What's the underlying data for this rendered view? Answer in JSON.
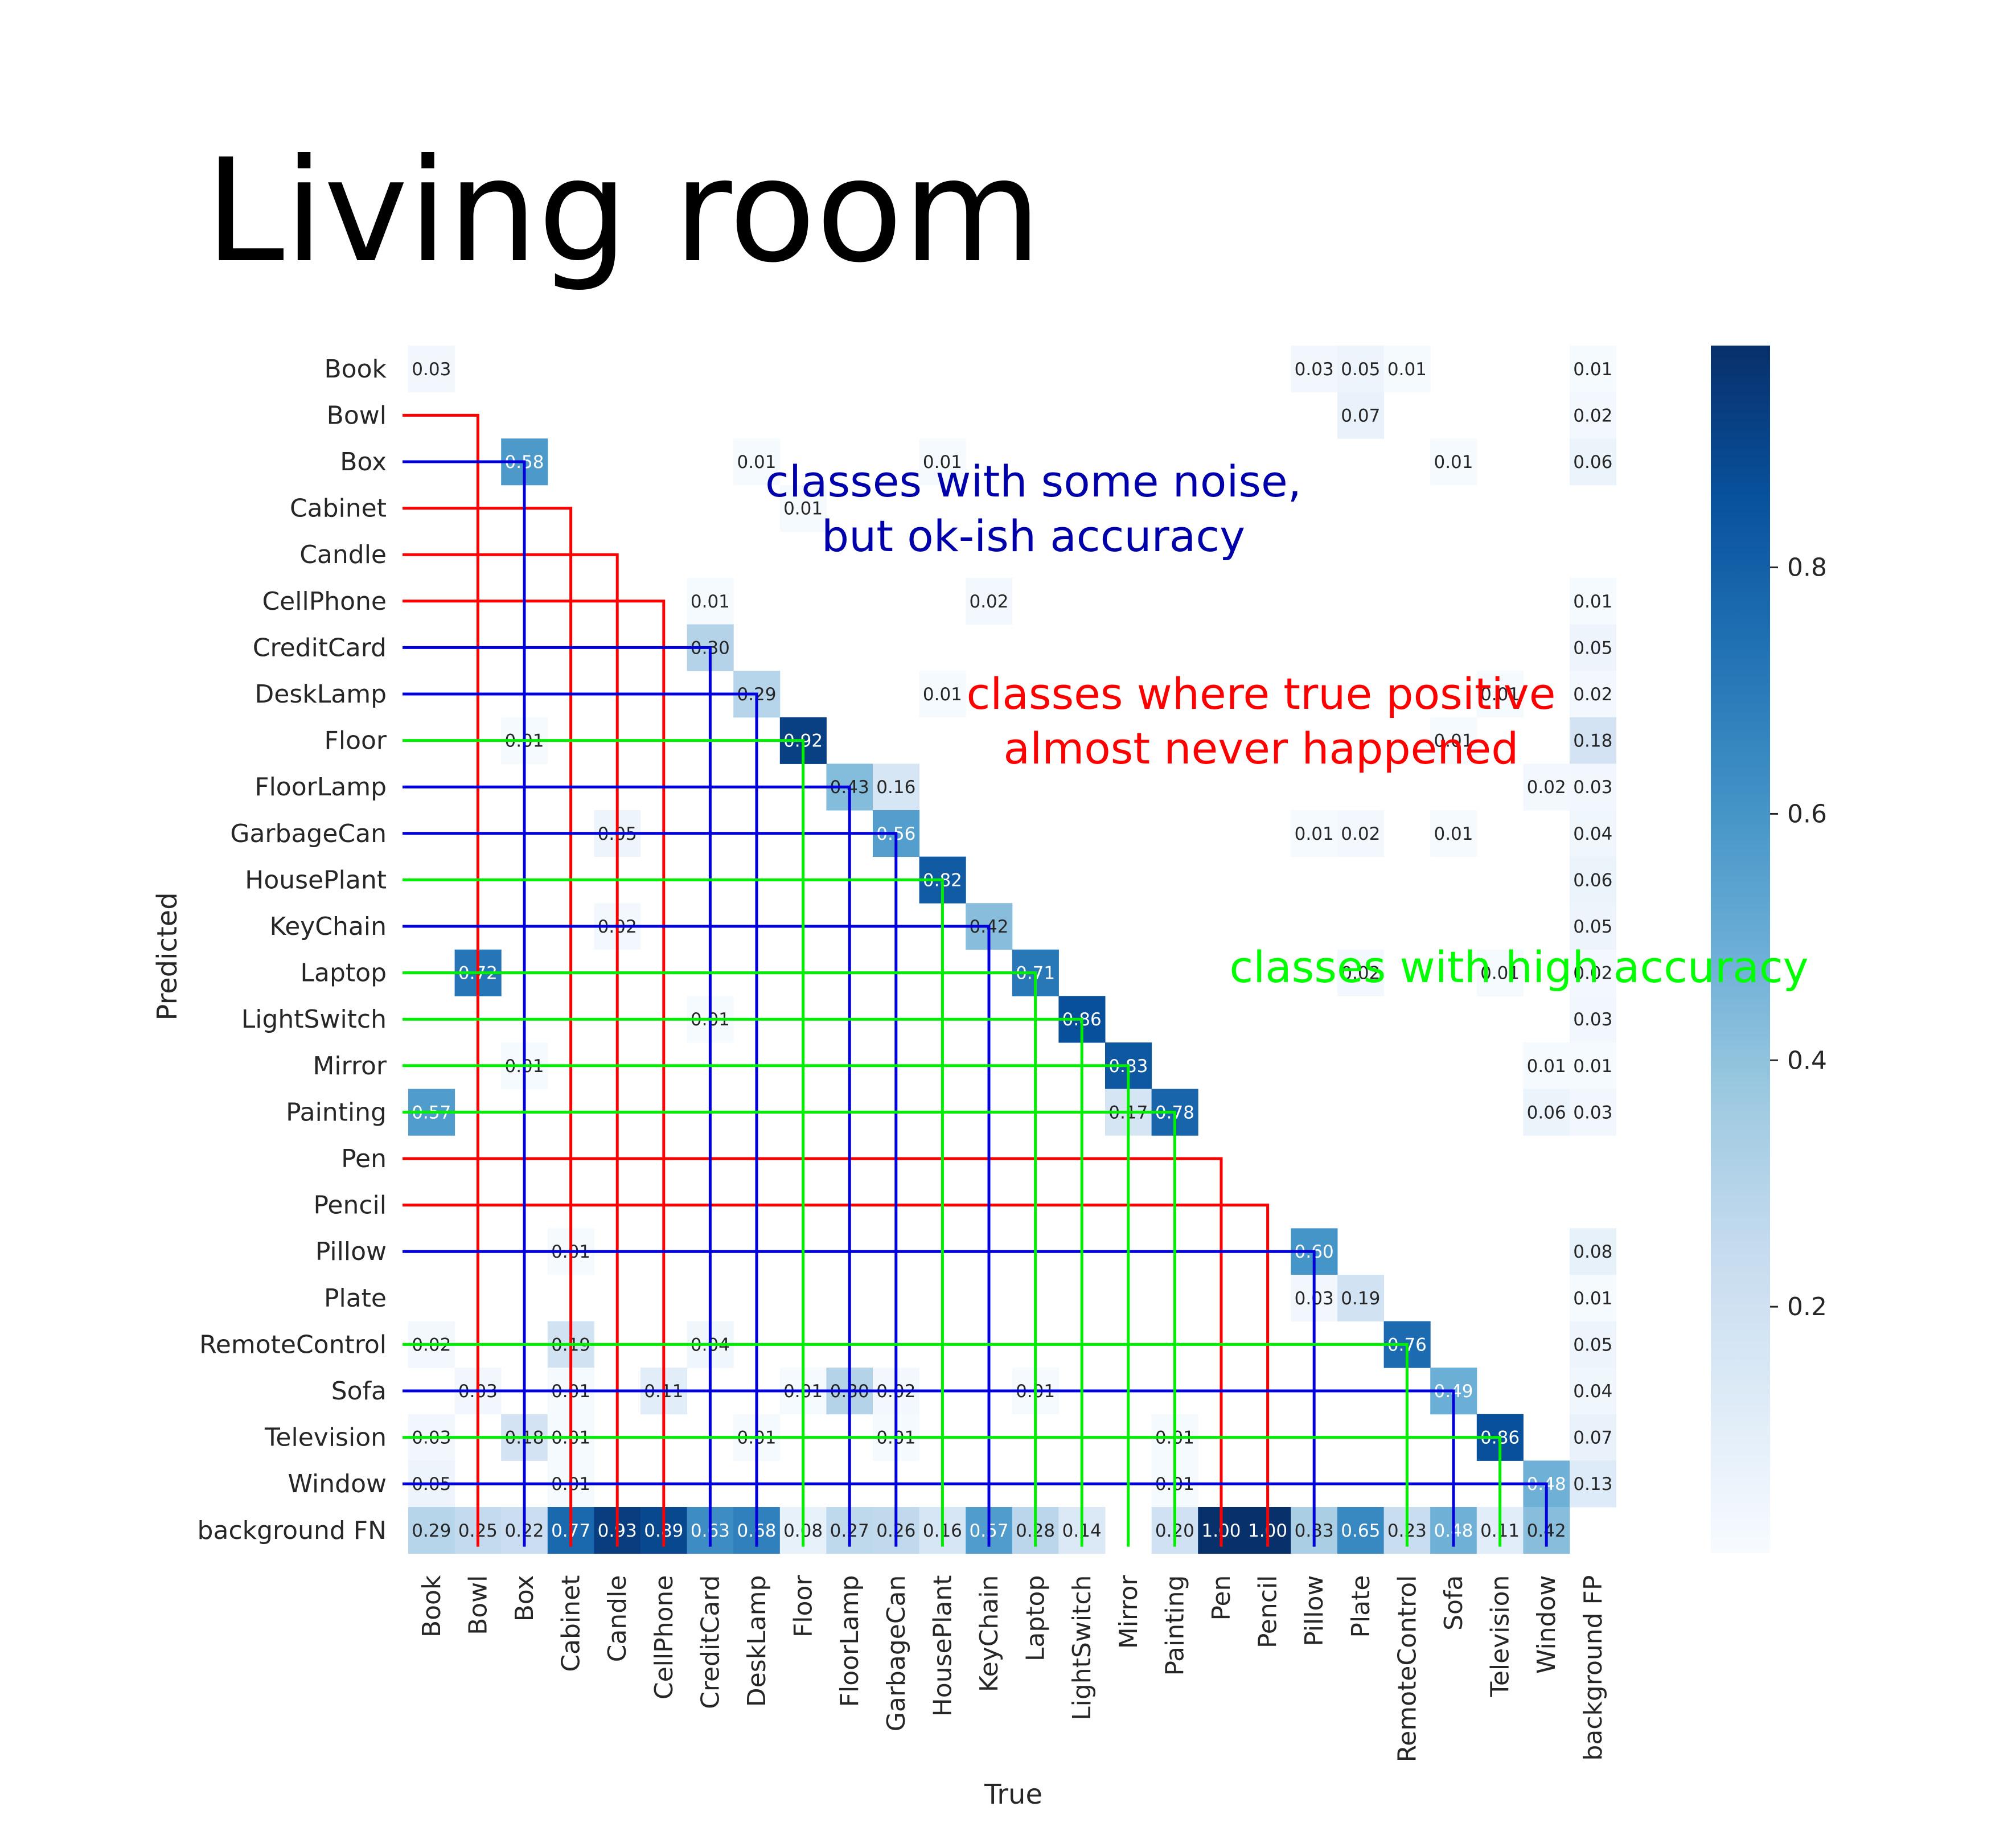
{
  "page_title": "Living room",
  "chart_data": {
    "type": "heatmap",
    "xlabel": "True",
    "ylabel": "Predicted",
    "x_categories": [
      "Book",
      "Bowl",
      "Box",
      "Cabinet",
      "Candle",
      "CellPhone",
      "CreditCard",
      "DeskLamp",
      "Floor",
      "FloorLamp",
      "GarbageCan",
      "HousePlant",
      "KeyChain",
      "Laptop",
      "LightSwitch",
      "Mirror",
      "Painting",
      "Pen",
      "Pencil",
      "Pillow",
      "Plate",
      "RemoteControl",
      "Sofa",
      "Television",
      "Window",
      "background FP"
    ],
    "y_categories": [
      "Book",
      "Bowl",
      "Box",
      "Cabinet",
      "Candle",
      "CellPhone",
      "CreditCard",
      "DeskLamp",
      "Floor",
      "FloorLamp",
      "GarbageCan",
      "HousePlant",
      "KeyChain",
      "Laptop",
      "LightSwitch",
      "Mirror",
      "Painting",
      "Pen",
      "Pencil",
      "Pillow",
      "Plate",
      "RemoteControl",
      "Sofa",
      "Television",
      "Window",
      "background FN"
    ],
    "colormap": "Blues",
    "value_range": [
      0,
      0.98
    ],
    "colorbar_ticks": [
      0.2,
      0.4,
      0.6,
      0.8
    ],
    "colorbar_tick_labels": [
      "0.2",
      "0.4",
      "0.6",
      "0.8"
    ],
    "cells": [
      {
        "row": "Book",
        "col": "Book",
        "value": 0.03
      },
      {
        "row": "Book",
        "col": "Pillow",
        "value": 0.03
      },
      {
        "row": "Book",
        "col": "Plate",
        "value": 0.05
      },
      {
        "row": "Book",
        "col": "RemoteControl",
        "value": 0.01
      },
      {
        "row": "Book",
        "col": "background FP",
        "value": 0.01
      },
      {
        "row": "Bowl",
        "col": "Plate",
        "value": 0.07
      },
      {
        "row": "Bowl",
        "col": "background FP",
        "value": 0.02
      },
      {
        "row": "Box",
        "col": "Box",
        "value": 0.58
      },
      {
        "row": "Box",
        "col": "DeskLamp",
        "value": 0.01
      },
      {
        "row": "Box",
        "col": "HousePlant",
        "value": 0.01
      },
      {
        "row": "Box",
        "col": "Sofa",
        "value": 0.01
      },
      {
        "row": "Box",
        "col": "background FP",
        "value": 0.06
      },
      {
        "row": "Cabinet",
        "col": "Floor",
        "value": 0.01
      },
      {
        "row": "CellPhone",
        "col": "CreditCard",
        "value": 0.01
      },
      {
        "row": "CellPhone",
        "col": "KeyChain",
        "value": 0.02
      },
      {
        "row": "CellPhone",
        "col": "background FP",
        "value": 0.01
      },
      {
        "row": "CreditCard",
        "col": "CreditCard",
        "value": 0.3
      },
      {
        "row": "CreditCard",
        "col": "background FP",
        "value": 0.05
      },
      {
        "row": "DeskLamp",
        "col": "DeskLamp",
        "value": 0.29
      },
      {
        "row": "DeskLamp",
        "col": "HousePlant",
        "value": 0.01
      },
      {
        "row": "DeskLamp",
        "col": "Television",
        "value": 0.01
      },
      {
        "row": "DeskLamp",
        "col": "background FP",
        "value": 0.02
      },
      {
        "row": "Floor",
        "col": "Box",
        "value": 0.01
      },
      {
        "row": "Floor",
        "col": "Floor",
        "value": 0.92
      },
      {
        "row": "Floor",
        "col": "Sofa",
        "value": 0.01
      },
      {
        "row": "Floor",
        "col": "background FP",
        "value": 0.18
      },
      {
        "row": "FloorLamp",
        "col": "FloorLamp",
        "value": 0.43
      },
      {
        "row": "FloorLamp",
        "col": "GarbageCan",
        "value": 0.16
      },
      {
        "row": "FloorLamp",
        "col": "Window",
        "value": 0.02
      },
      {
        "row": "FloorLamp",
        "col": "background FP",
        "value": 0.03
      },
      {
        "row": "GarbageCan",
        "col": "Candle",
        "value": 0.05
      },
      {
        "row": "GarbageCan",
        "col": "GarbageCan",
        "value": 0.56
      },
      {
        "row": "GarbageCan",
        "col": "Pillow",
        "value": 0.01
      },
      {
        "row": "GarbageCan",
        "col": "Plate",
        "value": 0.02
      },
      {
        "row": "GarbageCan",
        "col": "Sofa",
        "value": 0.01
      },
      {
        "row": "GarbageCan",
        "col": "background FP",
        "value": 0.04
      },
      {
        "row": "HousePlant",
        "col": "HousePlant",
        "value": 0.82
      },
      {
        "row": "HousePlant",
        "col": "background FP",
        "value": 0.06
      },
      {
        "row": "KeyChain",
        "col": "Candle",
        "value": 0.02
      },
      {
        "row": "KeyChain",
        "col": "KeyChain",
        "value": 0.42
      },
      {
        "row": "KeyChain",
        "col": "background FP",
        "value": 0.05
      },
      {
        "row": "Laptop",
        "col": "Bowl",
        "value": 0.72
      },
      {
        "row": "Laptop",
        "col": "Laptop",
        "value": 0.71
      },
      {
        "row": "Laptop",
        "col": "Plate",
        "value": 0.02
      },
      {
        "row": "Laptop",
        "col": "Television",
        "value": 0.01
      },
      {
        "row": "Laptop",
        "col": "background FP",
        "value": 0.02
      },
      {
        "row": "LightSwitch",
        "col": "CreditCard",
        "value": 0.01
      },
      {
        "row": "LightSwitch",
        "col": "LightSwitch",
        "value": 0.86
      },
      {
        "row": "LightSwitch",
        "col": "background FP",
        "value": 0.03
      },
      {
        "row": "Mirror",
        "col": "Box",
        "value": 0.01
      },
      {
        "row": "Mirror",
        "col": "Mirror",
        "value": 0.83
      },
      {
        "row": "Mirror",
        "col": "Window",
        "value": 0.01
      },
      {
        "row": "Mirror",
        "col": "background FP",
        "value": 0.01
      },
      {
        "row": "Painting",
        "col": "Book",
        "value": 0.57
      },
      {
        "row": "Painting",
        "col": "Mirror",
        "value": 0.17
      },
      {
        "row": "Painting",
        "col": "Painting",
        "value": 0.78
      },
      {
        "row": "Painting",
        "col": "Window",
        "value": 0.06
      },
      {
        "row": "Painting",
        "col": "background FP",
        "value": 0.03
      },
      {
        "row": "Pillow",
        "col": "Cabinet",
        "value": 0.01
      },
      {
        "row": "Pillow",
        "col": "Pillow",
        "value": 0.6
      },
      {
        "row": "Pillow",
        "col": "background FP",
        "value": 0.08
      },
      {
        "row": "Plate",
        "col": "Pillow",
        "value": 0.03
      },
      {
        "row": "Plate",
        "col": "Plate",
        "value": 0.19
      },
      {
        "row": "Plate",
        "col": "background FP",
        "value": 0.01
      },
      {
        "row": "RemoteControl",
        "col": "Book",
        "value": 0.02
      },
      {
        "row": "RemoteControl",
        "col": "Cabinet",
        "value": 0.19
      },
      {
        "row": "RemoteControl",
        "col": "CreditCard",
        "value": 0.04
      },
      {
        "row": "RemoteControl",
        "col": "RemoteControl",
        "value": 0.76
      },
      {
        "row": "RemoteControl",
        "col": "background FP",
        "value": 0.05
      },
      {
        "row": "Sofa",
        "col": "Bowl",
        "value": 0.03
      },
      {
        "row": "Sofa",
        "col": "Cabinet",
        "value": 0.01
      },
      {
        "row": "Sofa",
        "col": "CellPhone",
        "value": 0.11
      },
      {
        "row": "Sofa",
        "col": "Floor",
        "value": 0.01
      },
      {
        "row": "Sofa",
        "col": "FloorLamp",
        "value": 0.3
      },
      {
        "row": "Sofa",
        "col": "GarbageCan",
        "value": 0.02
      },
      {
        "row": "Sofa",
        "col": "Laptop",
        "value": 0.01
      },
      {
        "row": "Sofa",
        "col": "Sofa",
        "value": 0.49
      },
      {
        "row": "Sofa",
        "col": "background FP",
        "value": 0.04
      },
      {
        "row": "Television",
        "col": "Book",
        "value": 0.03
      },
      {
        "row": "Television",
        "col": "Box",
        "value": 0.18
      },
      {
        "row": "Television",
        "col": "Cabinet",
        "value": 0.01
      },
      {
        "row": "Television",
        "col": "DeskLamp",
        "value": 0.01
      },
      {
        "row": "Television",
        "col": "GarbageCan",
        "value": 0.01
      },
      {
        "row": "Television",
        "col": "Painting",
        "value": 0.01
      },
      {
        "row": "Television",
        "col": "Television",
        "value": 0.86
      },
      {
        "row": "Television",
        "col": "background FP",
        "value": 0.07
      },
      {
        "row": "Window",
        "col": "Book",
        "value": 0.05
      },
      {
        "row": "Window",
        "col": "Cabinet",
        "value": 0.01
      },
      {
        "row": "Window",
        "col": "Painting",
        "value": 0.01
      },
      {
        "row": "Window",
        "col": "Window",
        "value": 0.48
      },
      {
        "row": "Window",
        "col": "background FP",
        "value": 0.13
      },
      {
        "row": "background FN",
        "col": "Book",
        "value": 0.29
      },
      {
        "row": "background FN",
        "col": "Bowl",
        "value": 0.25
      },
      {
        "row": "background FN",
        "col": "Box",
        "value": 0.22
      },
      {
        "row": "background FN",
        "col": "Cabinet",
        "value": 0.77
      },
      {
        "row": "background FN",
        "col": "Candle",
        "value": 0.93
      },
      {
        "row": "background FN",
        "col": "CellPhone",
        "value": 0.89
      },
      {
        "row": "background FN",
        "col": "CreditCard",
        "value": 0.63
      },
      {
        "row": "background FN",
        "col": "DeskLamp",
        "value": 0.68
      },
      {
        "row": "background FN",
        "col": "Floor",
        "value": 0.08
      },
      {
        "row": "background FN",
        "col": "FloorLamp",
        "value": 0.27
      },
      {
        "row": "background FN",
        "col": "GarbageCan",
        "value": 0.26
      },
      {
        "row": "background FN",
        "col": "HousePlant",
        "value": 0.16
      },
      {
        "row": "background FN",
        "col": "KeyChain",
        "value": 0.57
      },
      {
        "row": "background FN",
        "col": "Laptop",
        "value": 0.28
      },
      {
        "row": "background FN",
        "col": "LightSwitch",
        "value": 0.14
      },
      {
        "row": "background FN",
        "col": "Painting",
        "value": 0.2
      },
      {
        "row": "background FN",
        "col": "Pen",
        "value": 1.0
      },
      {
        "row": "background FN",
        "col": "Pencil",
        "value": 1.0
      },
      {
        "row": "background FN",
        "col": "Pillow",
        "value": 0.33
      },
      {
        "row": "background FN",
        "col": "Plate",
        "value": 0.65
      },
      {
        "row": "background FN",
        "col": "RemoteControl",
        "value": 0.23
      },
      {
        "row": "background FN",
        "col": "Sofa",
        "value": 0.48
      },
      {
        "row": "background FN",
        "col": "Television",
        "value": 0.11
      },
      {
        "row": "background FN",
        "col": "Window",
        "value": 0.42
      }
    ],
    "annotations": [
      {
        "text_lines": [
          "classes with some noise,",
          "but ok-ish accuracy"
        ],
        "color": "#0000aa",
        "group": "blue"
      },
      {
        "text_lines": [
          "classes where true positive",
          "almost never happened"
        ],
        "color": "#ff0000",
        "group": "red"
      },
      {
        "text_lines": [
          "classes with high accuracy"
        ],
        "color": "#00ff00",
        "group": "green"
      }
    ],
    "class_groups": {
      "red": [
        "Bowl",
        "Cabinet",
        "Candle",
        "CellPhone",
        "Pen",
        "Pencil"
      ],
      "blue": [
        "Box",
        "CreditCard",
        "DeskLamp",
        "FloorLamp",
        "GarbageCan",
        "KeyChain",
        "Pillow",
        "Sofa",
        "Window"
      ],
      "green": [
        "Floor",
        "HousePlant",
        "Laptop",
        "LightSwitch",
        "Mirror",
        "Painting",
        "RemoteControl",
        "Television"
      ]
    }
  }
}
